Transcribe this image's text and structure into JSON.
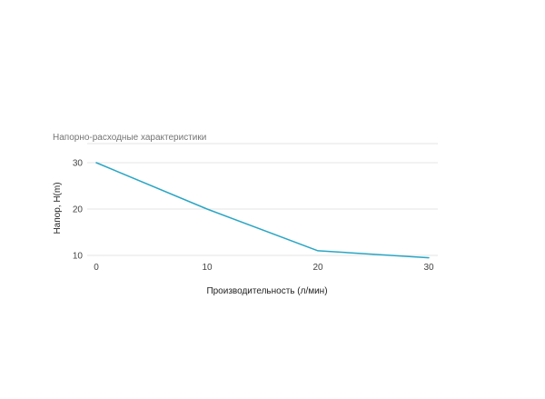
{
  "chart_data": {
    "type": "line",
    "title": "Напорно-расходные характеристики",
    "xlabel": "Производительность (л/мин)",
    "ylabel": "Напор, H(m)",
    "x": [
      0,
      10,
      20,
      30
    ],
    "series": [
      {
        "values": [
          30,
          20,
          11,
          9.5
        ]
      }
    ],
    "xlim": [
      0,
      30
    ],
    "ylim": [
      10,
      30
    ],
    "xticks": [
      "0",
      "10",
      "20",
      "30"
    ],
    "yticks": [
      "10",
      "20",
      "30"
    ],
    "grid": true,
    "line_color": "#2aa6c4",
    "grid_color": "#e6e6e6"
  }
}
